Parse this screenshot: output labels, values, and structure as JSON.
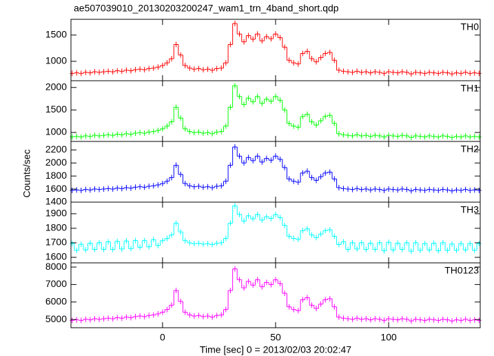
{
  "chart_data": [
    {
      "type": "step",
      "title": "ae507039010_20130203200247_wam1_trn_4band_short.qdp",
      "label": "TH0",
      "color": "#ff0000",
      "xlim": [
        -40.5,
        140.5
      ],
      "xticks": [
        0,
        50,
        100
      ],
      "ylim": [
        630,
        1800
      ],
      "yticks": [
        1000,
        1500
      ],
      "x": [
        -40,
        -38,
        -36,
        -34,
        -32,
        -30,
        -28,
        -26,
        -24,
        -22,
        -20,
        -18,
        -16,
        -14,
        -12,
        -10,
        -8,
        -6,
        -4,
        -2,
        0,
        2,
        4,
        6,
        8,
        10,
        12,
        14,
        16,
        18,
        20,
        22,
        24,
        26,
        28,
        30,
        32,
        34,
        36,
        38,
        40,
        42,
        44,
        46,
        48,
        50,
        52,
        54,
        56,
        58,
        60,
        62,
        64,
        66,
        68,
        70,
        72,
        74,
        76,
        78,
        80,
        82,
        84,
        86,
        88,
        90,
        92,
        94,
        96,
        98,
        100,
        102,
        104,
        106,
        108,
        110,
        112,
        114,
        116,
        118,
        120,
        122,
        124,
        126,
        128,
        130,
        132,
        134,
        136,
        138,
        140
      ],
      "values": [
        770,
        780,
        770,
        790,
        780,
        800,
        790,
        800,
        810,
        800,
        820,
        810,
        830,
        820,
        840,
        850,
        840,
        860,
        870,
        890,
        920,
        970,
        1050,
        1320,
        1120,
        920,
        870,
        850,
        860,
        840,
        850,
        830,
        860,
        870,
        970,
        1320,
        1720,
        1520,
        1370,
        1490,
        1420,
        1520,
        1390,
        1470,
        1430,
        1520,
        1450,
        1270,
        1020,
        970,
        950,
        1150,
        1190,
        1050,
        990,
        1070,
        1150,
        1170,
        1020,
        830,
        810,
        800,
        790,
        810,
        790,
        800,
        780,
        800,
        790,
        770,
        800,
        790,
        780,
        800,
        790,
        760,
        790,
        780,
        770,
        790,
        780,
        770,
        790,
        780,
        760,
        780,
        770,
        790,
        770,
        780,
        770
      ]
    },
    {
      "type": "step",
      "label": "TH1",
      "color": "#00ff00",
      "xlim": [
        -40.5,
        140.5
      ],
      "xticks": [
        0,
        50,
        100
      ],
      "ylim": [
        800,
        2150
      ],
      "yticks": [
        1000,
        1500,
        2000
      ],
      "x": [
        -40,
        -38,
        -36,
        -34,
        -32,
        -30,
        -28,
        -26,
        -24,
        -22,
        -20,
        -18,
        -16,
        -14,
        -12,
        -10,
        -8,
        -6,
        -4,
        -2,
        0,
        2,
        4,
        6,
        8,
        10,
        12,
        14,
        16,
        18,
        20,
        22,
        24,
        26,
        28,
        30,
        32,
        34,
        36,
        38,
        40,
        42,
        44,
        46,
        48,
        50,
        52,
        54,
        56,
        58,
        60,
        62,
        64,
        66,
        68,
        70,
        72,
        74,
        76,
        78,
        80,
        82,
        84,
        86,
        88,
        90,
        92,
        94,
        96,
        98,
        100,
        102,
        104,
        106,
        108,
        110,
        112,
        114,
        116,
        118,
        120,
        122,
        124,
        126,
        128,
        130,
        132,
        134,
        136,
        138,
        140
      ],
      "values": [
        900,
        912,
        900,
        924,
        912,
        936,
        924,
        936,
        948,
        936,
        960,
        948,
        972,
        960,
        984,
        996,
        984,
        1008,
        1020,
        1044,
        1080,
        1140,
        1236,
        1560,
        1320,
        1080,
        1020,
        996,
        1008,
        984,
        996,
        972,
        1008,
        1020,
        1140,
        1560,
        2040,
        1800,
        1620,
        1764,
        1680,
        1800,
        1644,
        1740,
        1692,
        1800,
        1716,
        1500,
        1200,
        1140,
        1116,
        1356,
        1404,
        1236,
        1164,
        1260,
        1356,
        1380,
        1200,
        972,
        948,
        936,
        924,
        948,
        924,
        936,
        912,
        936,
        924,
        900,
        936,
        924,
        912,
        936,
        924,
        888,
        924,
        912,
        900,
        924,
        912,
        900,
        924,
        912,
        888,
        912,
        900,
        924,
        900,
        912,
        900
      ]
    },
    {
      "type": "step",
      "label": "TH2",
      "ylabel": "Counts/sec",
      "color": "#0000ff",
      "xlim": [
        -40.5,
        140.5
      ],
      "xticks": [
        0,
        50,
        100
      ],
      "ylim": [
        1400,
        2330
      ],
      "yticks": [
        1400,
        1600,
        1800,
        2000,
        2200
      ],
      "x": [
        -40,
        -38,
        -36,
        -34,
        -32,
        -30,
        -28,
        -26,
        -24,
        -22,
        -20,
        -18,
        -16,
        -14,
        -12,
        -10,
        -8,
        -6,
        -4,
        -2,
        0,
        2,
        4,
        6,
        8,
        10,
        12,
        14,
        16,
        18,
        20,
        22,
        24,
        26,
        28,
        30,
        32,
        34,
        36,
        38,
        40,
        42,
        44,
        46,
        48,
        50,
        52,
        54,
        56,
        58,
        60,
        62,
        64,
        66,
        68,
        70,
        72,
        74,
        76,
        78,
        80,
        82,
        84,
        86,
        88,
        90,
        92,
        94,
        96,
        98,
        100,
        102,
        104,
        106,
        108,
        110,
        112,
        114,
        116,
        118,
        120,
        122,
        124,
        126,
        128,
        130,
        132,
        134,
        136,
        138,
        140
      ],
      "values": [
        1580,
        1587,
        1580,
        1594,
        1587,
        1601,
        1594,
        1601,
        1608,
        1601,
        1615,
        1608,
        1622,
        1615,
        1629,
        1636,
        1629,
        1643,
        1650,
        1664,
        1685,
        1720,
        1776,
        1965,
        1825,
        1685,
        1650,
        1636,
        1643,
        1629,
        1636,
        1622,
        1643,
        1650,
        1720,
        1965,
        2245,
        2105,
        2000,
        2084,
        2035,
        2105,
        2014,
        2070,
        2042,
        2105,
        2056,
        1930,
        1755,
        1720,
        1706,
        1846,
        1874,
        1776,
        1734,
        1790,
        1846,
        1860,
        1755,
        1622,
        1608,
        1601,
        1594,
        1608,
        1594,
        1601,
        1587,
        1601,
        1594,
        1580,
        1601,
        1594,
        1587,
        1601,
        1594,
        1573,
        1594,
        1587,
        1580,
        1594,
        1587,
        1580,
        1594,
        1587,
        1573,
        1587,
        1580,
        1594,
        1580,
        1587,
        1580
      ]
    },
    {
      "type": "step",
      "label": "TH3",
      "color": "#00ffff",
      "xlim": [
        -40.5,
        140.5
      ],
      "xticks": [
        0,
        50,
        100
      ],
      "ylim": [
        1562,
        1980
      ],
      "yticks": [
        1600,
        1700,
        1800,
        1900
      ],
      "x": [
        -40,
        -38,
        -36,
        -34,
        -32,
        -30,
        -28,
        -26,
        -24,
        -22,
        -20,
        -18,
        -16,
        -14,
        -12,
        -10,
        -8,
        -6,
        -4,
        -2,
        0,
        2,
        4,
        6,
        8,
        10,
        12,
        14,
        16,
        18,
        20,
        22,
        24,
        26,
        28,
        30,
        32,
        34,
        36,
        38,
        40,
        42,
        44,
        46,
        48,
        50,
        52,
        54,
        56,
        58,
        60,
        62,
        64,
        66,
        68,
        70,
        72,
        74,
        76,
        78,
        80,
        82,
        84,
        86,
        88,
        90,
        92,
        94,
        96,
        98,
        100,
        102,
        104,
        106,
        108,
        110,
        112,
        114,
        116,
        118,
        120,
        122,
        124,
        126,
        128,
        130,
        132,
        134,
        136,
        138,
        140
      ],
      "values": [
        1695,
        1648,
        1690,
        1651,
        1698,
        1654,
        1701,
        1654,
        1707,
        1654,
        1710,
        1657,
        1713,
        1660,
        1716,
        1669,
        1716,
        1672,
        1722,
        1681,
        1715,
        1730,
        1754,
        1835,
        1775,
        1715,
        1700,
        1694,
        1697,
        1691,
        1694,
        1688,
        1697,
        1700,
        1730,
        1835,
        1955,
        1895,
        1850,
        1886,
        1865,
        1895,
        1856,
        1880,
        1868,
        1895,
        1874,
        1820,
        1745,
        1730,
        1724,
        1784,
        1796,
        1754,
        1736,
        1760,
        1784,
        1790,
        1745,
        1688,
        1707,
        1654,
        1701,
        1657,
        1701,
        1654,
        1698,
        1654,
        1701,
        1645,
        1704,
        1651,
        1698,
        1654,
        1701,
        1642,
        1701,
        1648,
        1695,
        1651,
        1698,
        1645,
        1701,
        1648,
        1692,
        1648,
        1695,
        1651,
        1695,
        1648,
        1695
      ]
    },
    {
      "type": "step",
      "label": "TH0123",
      "xlabel": "Time [sec] 0 = 2013/02/03 20:02:47",
      "color": "#ff00ff",
      "xlim": [
        -40.5,
        140.5
      ],
      "xticks": [
        0,
        50,
        100
      ],
      "ylim": [
        4530,
        8240
      ],
      "yticks": [
        5000,
        6000,
        7000,
        8000
      ],
      "x": [
        -40,
        -38,
        -36,
        -34,
        -32,
        -30,
        -28,
        -26,
        -24,
        -22,
        -20,
        -18,
        -16,
        -14,
        -12,
        -10,
        -8,
        -6,
        -4,
        -2,
        0,
        2,
        4,
        6,
        8,
        10,
        12,
        14,
        16,
        18,
        20,
        22,
        24,
        26,
        28,
        30,
        32,
        34,
        36,
        38,
        40,
        42,
        44,
        46,
        48,
        50,
        52,
        54,
        56,
        58,
        60,
        62,
        64,
        66,
        68,
        70,
        72,
        74,
        76,
        78,
        80,
        82,
        84,
        86,
        88,
        90,
        92,
        94,
        96,
        98,
        100,
        102,
        104,
        106,
        108,
        110,
        112,
        114,
        116,
        118,
        120,
        122,
        124,
        126,
        128,
        130,
        132,
        134,
        136,
        138,
        140
      ],
      "values": [
        4950,
        4981,
        4950,
        5012,
        4981,
        5043,
        5012,
        5043,
        5074,
        5043,
        5105,
        5074,
        5136,
        5105,
        5167,
        5198,
        5167,
        5229,
        5260,
        5322,
        5415,
        5570,
        5818,
        6655,
        6035,
        5415,
        5260,
        5198,
        5229,
        5167,
        5198,
        5136,
        5229,
        5260,
        5570,
        6655,
        7895,
        7275,
        6810,
        7182,
        6965,
        7275,
        6872,
        7120,
        6996,
        7275,
        7058,
        6500,
        5725,
        5570,
        5508,
        6128,
        6252,
        5818,
        5632,
        5880,
        6128,
        6190,
        5725,
        5136,
        5074,
        5043,
        5012,
        5074,
        5012,
        5043,
        4981,
        5043,
        5012,
        4950,
        5043,
        5012,
        4981,
        5043,
        5012,
        4919,
        5012,
        4981,
        4950,
        5012,
        4981,
        4950,
        5012,
        4981,
        4919,
        4981,
        4950,
        5012,
        4950,
        4981,
        4950
      ]
    }
  ]
}
